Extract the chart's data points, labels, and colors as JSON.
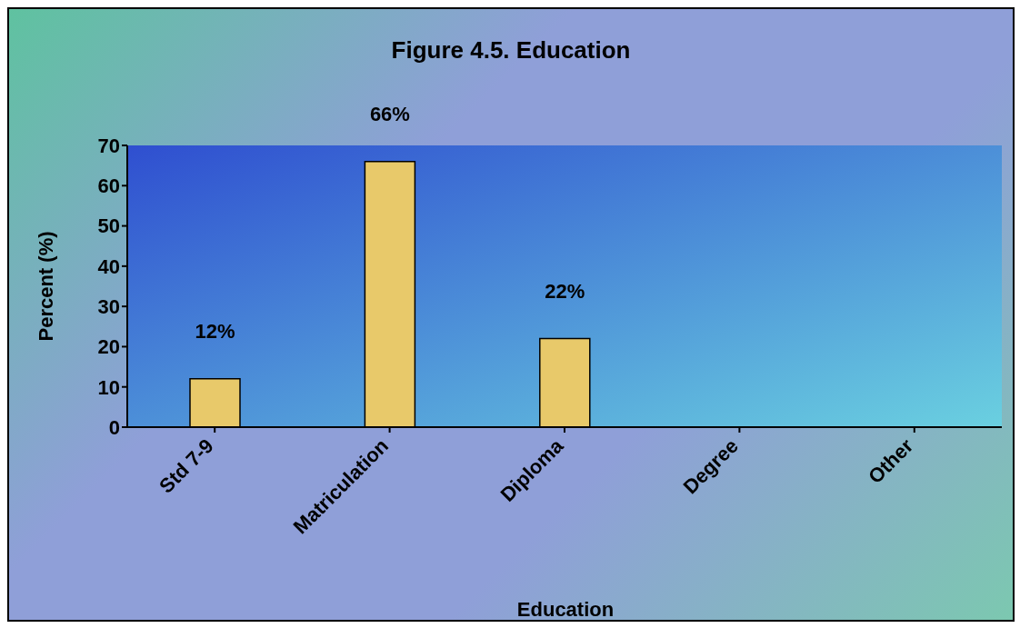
{
  "chart_data": {
    "type": "bar",
    "title": "Figure 4.5. Education",
    "xlabel": "Education",
    "ylabel": "Percent (%)",
    "categories": [
      "Std 7-9",
      "Matriculation",
      "Diploma",
      "Degree",
      "Other"
    ],
    "values": [
      12,
      66,
      22,
      0,
      0
    ],
    "value_labels": [
      "12%",
      "66%",
      "22%",
      null,
      null
    ],
    "color": "#e8c96a",
    "ylim": [
      0,
      70
    ],
    "yticks": [
      0,
      10,
      20,
      30,
      40,
      50,
      60,
      70
    ],
    "grid": false,
    "legend": false
  }
}
